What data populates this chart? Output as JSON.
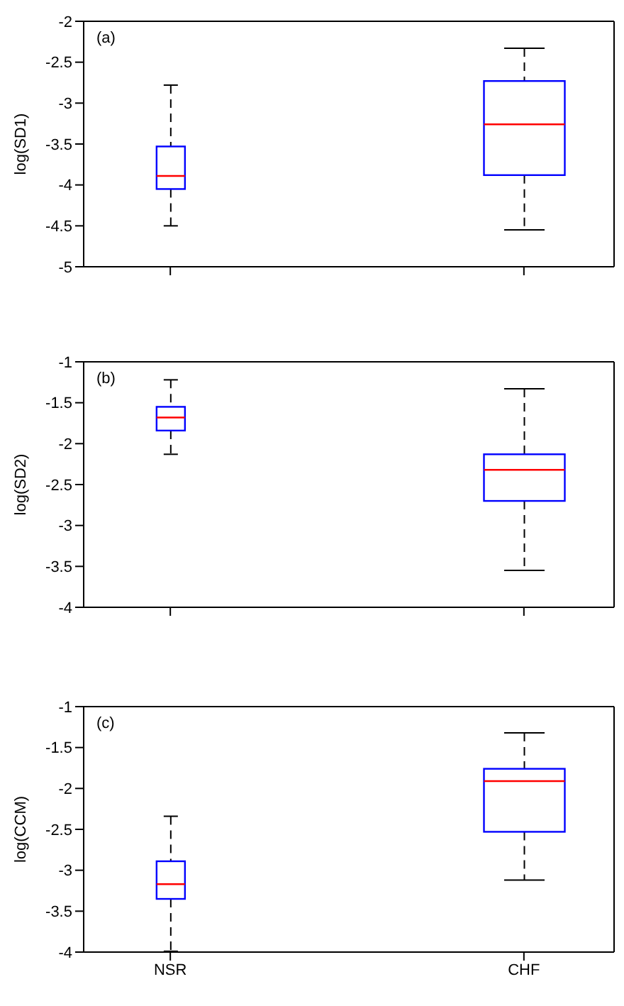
{
  "chart_data": [
    {
      "type": "box",
      "categories": [
        null,
        null
      ],
      "color": "#0000ff",
      "ylabel": "log(SD1)",
      "annotations": [
        "(a)"
      ],
      "ylim": [
        -5,
        -2
      ],
      "yticks": [
        -5,
        -4.5,
        -4,
        -3.5,
        -3,
        -2.5,
        -2
      ],
      "boxes": [
        {
          "low": -4.5,
          "q1": -4.05,
          "median": -3.89,
          "q3": -3.53,
          "high": -2.78
        },
        {
          "low": -4.55,
          "q1": -3.88,
          "median": -3.26,
          "q3": -2.73,
          "high": -2.33
        }
      ]
    },
    {
      "type": "box",
      "categories": [
        null,
        null
      ],
      "color": "#0000ff",
      "ylabel": "log(SD2)",
      "annotations": [
        "(b)"
      ],
      "ylim": [
        -4,
        -1
      ],
      "yticks": [
        -4,
        -3.5,
        -3,
        -2.5,
        -2,
        -1.5,
        -1
      ],
      "boxes": [
        {
          "low": -2.13,
          "q1": -1.84,
          "median": -1.68,
          "q3": -1.55,
          "high": -1.22
        },
        {
          "low": -3.55,
          "q1": -2.7,
          "median": -2.32,
          "q3": -2.13,
          "high": -1.33
        }
      ]
    },
    {
      "type": "box",
      "categories": [
        "NSR",
        "CHF"
      ],
      "color": "#0000ff",
      "ylabel": "log(CCM)",
      "annotations": [
        "(c)"
      ],
      "ylim": [
        -4,
        -1
      ],
      "yticks": [
        -4,
        -3.5,
        -3,
        -2.5,
        -2,
        -1.5,
        -1
      ],
      "boxes": [
        {
          "low": -3.99,
          "q1": -3.35,
          "median": -3.17,
          "q3": -2.89,
          "high": -2.34
        },
        {
          "low": -3.12,
          "q1": -2.53,
          "median": -1.91,
          "q3": -1.76,
          "high": -1.32
        }
      ]
    }
  ]
}
